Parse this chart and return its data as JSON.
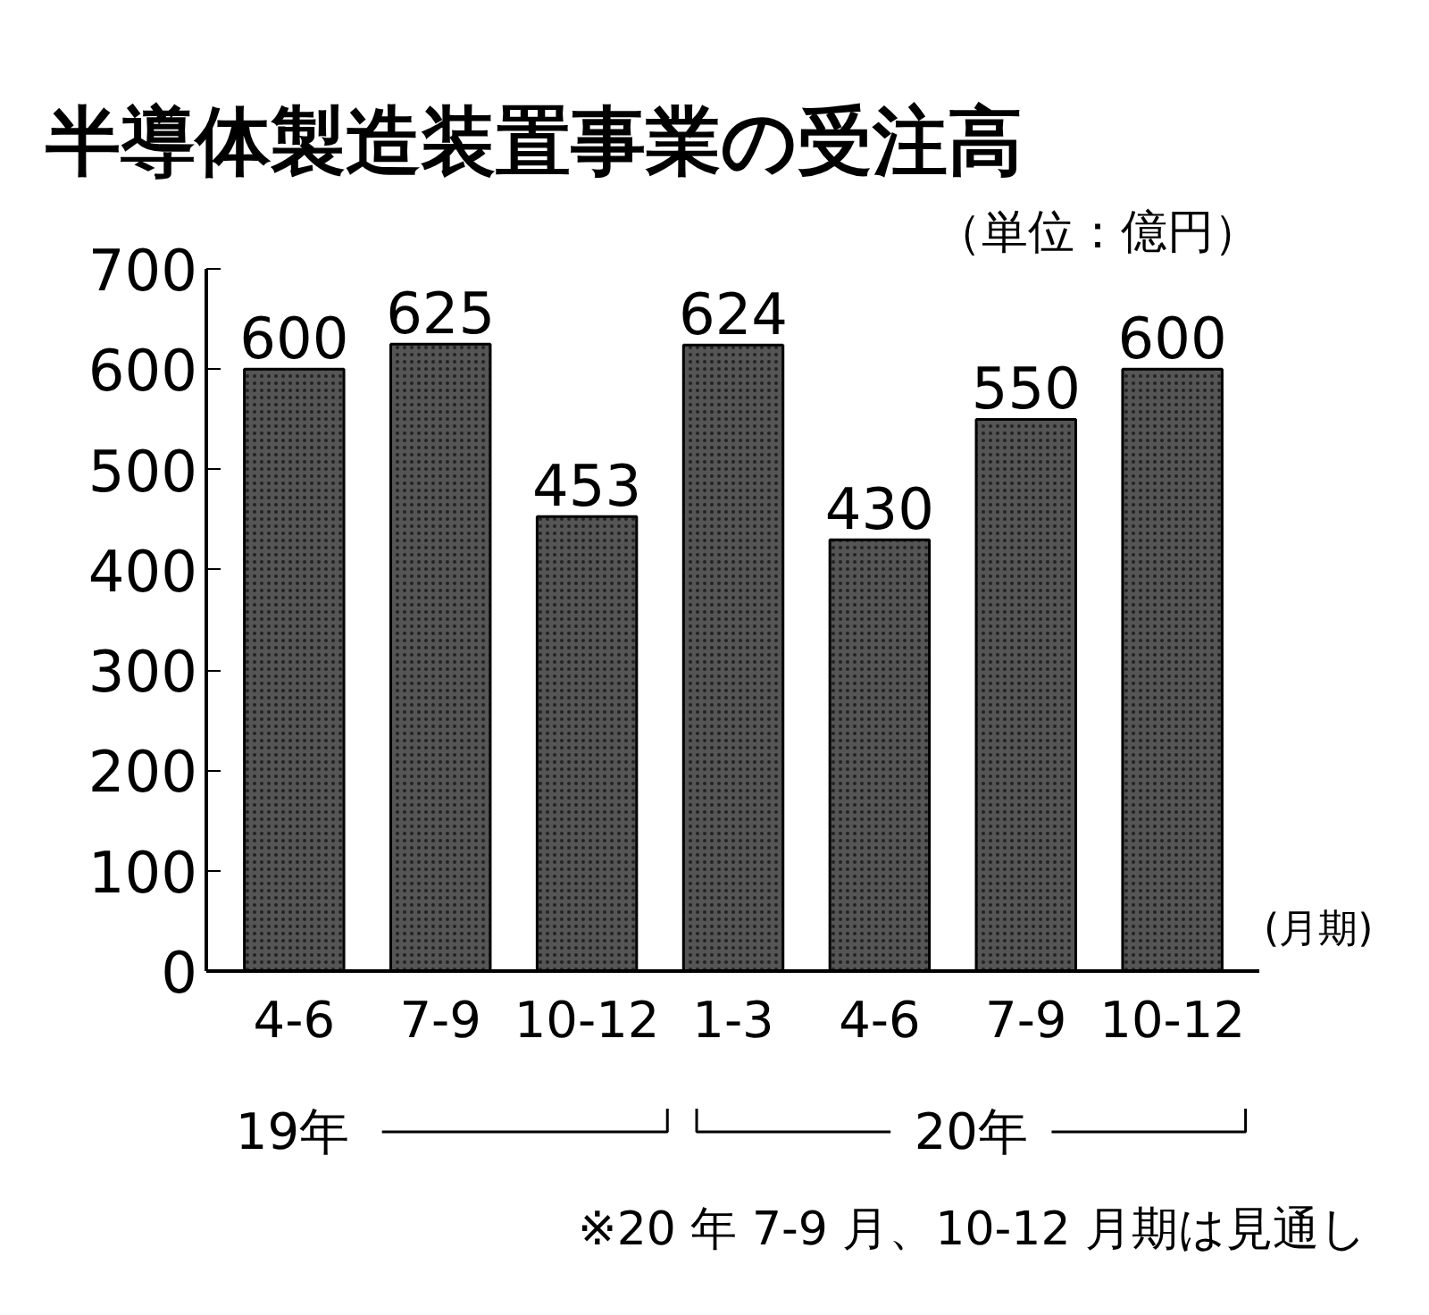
{
  "chart_data": {
    "type": "bar",
    "title": "半導体製造装置事業の受注高",
    "categories": [
      "4-6",
      "7-9",
      "10-12",
      "1-3",
      "4-6",
      "7-9",
      "10-12"
    ],
    "values": [
      600,
      625,
      453,
      624,
      430,
      550,
      600
    ],
    "color": "#555555",
    "ylim": [
      0,
      700
    ],
    "yticks": [
      0,
      100,
      200,
      300,
      400,
      500,
      600,
      700
    ],
    "xlabel": "(月期)",
    "data_labels": true,
    "grid": false,
    "legend": false,
    "annotations": [
      "（単位：億円）",
      "19年",
      "20年",
      "※20 年 7-9 月、10-12 月期は見通し"
    ]
  }
}
